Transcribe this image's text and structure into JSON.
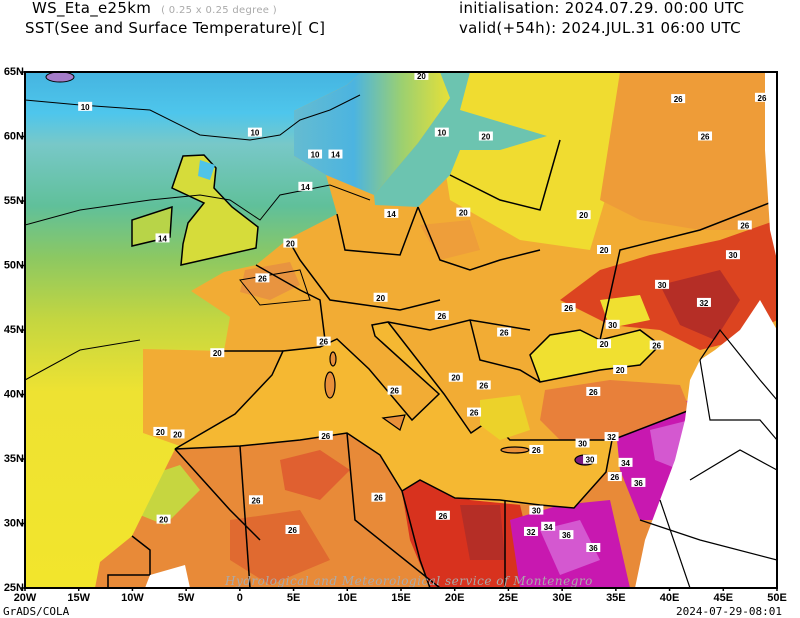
{
  "header": {
    "model": "WS_Eta_e25km",
    "resolution": "( 0.25 x 0.25 degree )",
    "field": "SST(See and Surface Temperature)[ C]",
    "initialisation": "initialisation: 2024.07.29. 00:00 UTC",
    "valid": "valid(+54h): 2024.JUL.31 06:00 UTC"
  },
  "map": {
    "lon_range": [
      -20,
      50
    ],
    "lat_range": [
      25,
      65
    ],
    "lat_labels": [
      {
        "lat": 65,
        "text": "65N"
      },
      {
        "lat": 60,
        "text": "60N"
      },
      {
        "lat": 55,
        "text": "55N"
      },
      {
        "lat": 50,
        "text": "50N"
      },
      {
        "lat": 45,
        "text": "45N"
      },
      {
        "lat": 40,
        "text": "40N"
      },
      {
        "lat": 35,
        "text": "35N"
      },
      {
        "lat": 30,
        "text": "30N"
      },
      {
        "lat": 25,
        "text": "25N"
      }
    ],
    "lon_labels": [
      {
        "lon": -20,
        "text": "20W"
      },
      {
        "lon": -15,
        "text": "15W"
      },
      {
        "lon": -10,
        "text": "10W"
      },
      {
        "lon": -5,
        "text": "5W"
      },
      {
        "lon": 0,
        "text": "0"
      },
      {
        "lon": 5,
        "text": "5E"
      },
      {
        "lon": 10,
        "text": "10E"
      },
      {
        "lon": 15,
        "text": "15E"
      },
      {
        "lon": 20,
        "text": "20E"
      },
      {
        "lon": 25,
        "text": "25E"
      },
      {
        "lon": 30,
        "text": "30E"
      },
      {
        "lon": 35,
        "text": "35E"
      },
      {
        "lon": 40,
        "text": "40E"
      },
      {
        "lon": 45,
        "text": "45E"
      },
      {
        "lon": 50,
        "text": "50E"
      }
    ],
    "contour_labels": [
      {
        "lon": -14.4,
        "lat": 62.3,
        "text": "10"
      },
      {
        "lon": 1.4,
        "lat": 60.3,
        "text": "10"
      },
      {
        "lon": 7.0,
        "lat": 58.6,
        "text": "10"
      },
      {
        "lon": 18.8,
        "lat": 60.3,
        "text": "10"
      },
      {
        "lon": -7.2,
        "lat": 52.1,
        "text": "14"
      },
      {
        "lon": 6.1,
        "lat": 56.1,
        "text": "14"
      },
      {
        "lon": 8.9,
        "lat": 58.6,
        "text": "14"
      },
      {
        "lon": 14.1,
        "lat": 54.0,
        "text": "14"
      },
      {
        "lon": 16.9,
        "lat": 64.7,
        "text": "20"
      },
      {
        "lon": 4.7,
        "lat": 51.7,
        "text": "20"
      },
      {
        "lon": 20.8,
        "lat": 54.1,
        "text": "20"
      },
      {
        "lon": 13.1,
        "lat": 47.5,
        "text": "20"
      },
      {
        "lon": -2.1,
        "lat": 43.2,
        "text": "20"
      },
      {
        "lon": -7.4,
        "lat": 37.1,
        "text": "20"
      },
      {
        "lon": -5.8,
        "lat": 36.9,
        "text": "20"
      },
      {
        "lon": 33.9,
        "lat": 51.2,
        "text": "20"
      },
      {
        "lon": 32.0,
        "lat": 53.9,
        "text": "20"
      },
      {
        "lon": 33.9,
        "lat": 43.9,
        "text": "20"
      },
      {
        "lon": 35.4,
        "lat": 41.9,
        "text": "20"
      },
      {
        "lon": 20.1,
        "lat": 41.3,
        "text": "20"
      },
      {
        "lon": 22.9,
        "lat": 60.0,
        "text": "20"
      },
      {
        "lon": -7.1,
        "lat": 30.3,
        "text": "20"
      },
      {
        "lon": 2.1,
        "lat": 49.0,
        "text": "26"
      },
      {
        "lon": 7.8,
        "lat": 44.1,
        "text": "26"
      },
      {
        "lon": 18.8,
        "lat": 46.1,
        "text": "26"
      },
      {
        "lon": 24.6,
        "lat": 44.8,
        "text": "26"
      },
      {
        "lon": 14.4,
        "lat": 40.3,
        "text": "26"
      },
      {
        "lon": 30.6,
        "lat": 46.7,
        "text": "26"
      },
      {
        "lon": 38.8,
        "lat": 43.8,
        "text": "26"
      },
      {
        "lon": 32.9,
        "lat": 40.2,
        "text": "26"
      },
      {
        "lon": 22.7,
        "lat": 40.7,
        "text": "26"
      },
      {
        "lon": 21.8,
        "lat": 38.6,
        "text": "26"
      },
      {
        "lon": 27.6,
        "lat": 35.7,
        "text": "26"
      },
      {
        "lon": 18.9,
        "lat": 30.6,
        "text": "26"
      },
      {
        "lon": 12.9,
        "lat": 32.0,
        "text": "26"
      },
      {
        "lon": 4.9,
        "lat": 29.5,
        "text": "26"
      },
      {
        "lon": 1.5,
        "lat": 31.8,
        "text": "26"
      },
      {
        "lon": 8.0,
        "lat": 36.8,
        "text": "26"
      },
      {
        "lon": 43.3,
        "lat": 60.0,
        "text": "26"
      },
      {
        "lon": 40.8,
        "lat": 62.9,
        "text": "26"
      },
      {
        "lon": 48.6,
        "lat": 63.0,
        "text": "26"
      },
      {
        "lon": 47.0,
        "lat": 53.1,
        "text": "26"
      },
      {
        "lon": 34.9,
        "lat": 33.6,
        "text": "26"
      },
      {
        "lon": 45.9,
        "lat": 50.8,
        "text": "30"
      },
      {
        "lon": 39.3,
        "lat": 48.5,
        "text": "30"
      },
      {
        "lon": 34.7,
        "lat": 45.4,
        "text": "30"
      },
      {
        "lon": 31.9,
        "lat": 36.2,
        "text": "30"
      },
      {
        "lon": 32.6,
        "lat": 35.8,
        "text": "30"
      },
      {
        "lon": 27.6,
        "lat": 31.0,
        "text": "30"
      },
      {
        "lon": 43.2,
        "lat": 47.1,
        "text": "32"
      },
      {
        "lon": 27.1,
        "lat": 30.2,
        "text": "32"
      },
      {
        "lon": 34.6,
        "lat": 36.7,
        "text": "32"
      },
      {
        "lon": 28.7,
        "lat": 30.6,
        "text": "34"
      },
      {
        "lon": 35.9,
        "lat": 34.7,
        "text": "34"
      },
      {
        "lon": 30.4,
        "lat": 29.1,
        "text": "36"
      },
      {
        "lon": 37.1,
        "lat": 34.0,
        "text": "36"
      },
      {
        "lon": 32.9,
        "lat": 28.1,
        "text": "36"
      }
    ],
    "watermark": "Hydrological and Meteorological service of Montenegro"
  },
  "colors": {
    "cold": "#4cc4ea",
    "cool": "#78c8c8",
    "mild": "#5ebf90",
    "warm": "#c9d93e",
    "yellow": "#f0e530",
    "orange": "#f4b030",
    "dark_orange": "#e88a38",
    "red": "#d83a22",
    "dark_red": "#b52e26",
    "magenta": "#c818b0",
    "violet": "#d458d0"
  },
  "footer": {
    "software": "GrADS/COLA",
    "timestamp": "2024-07-29-08:01"
  }
}
